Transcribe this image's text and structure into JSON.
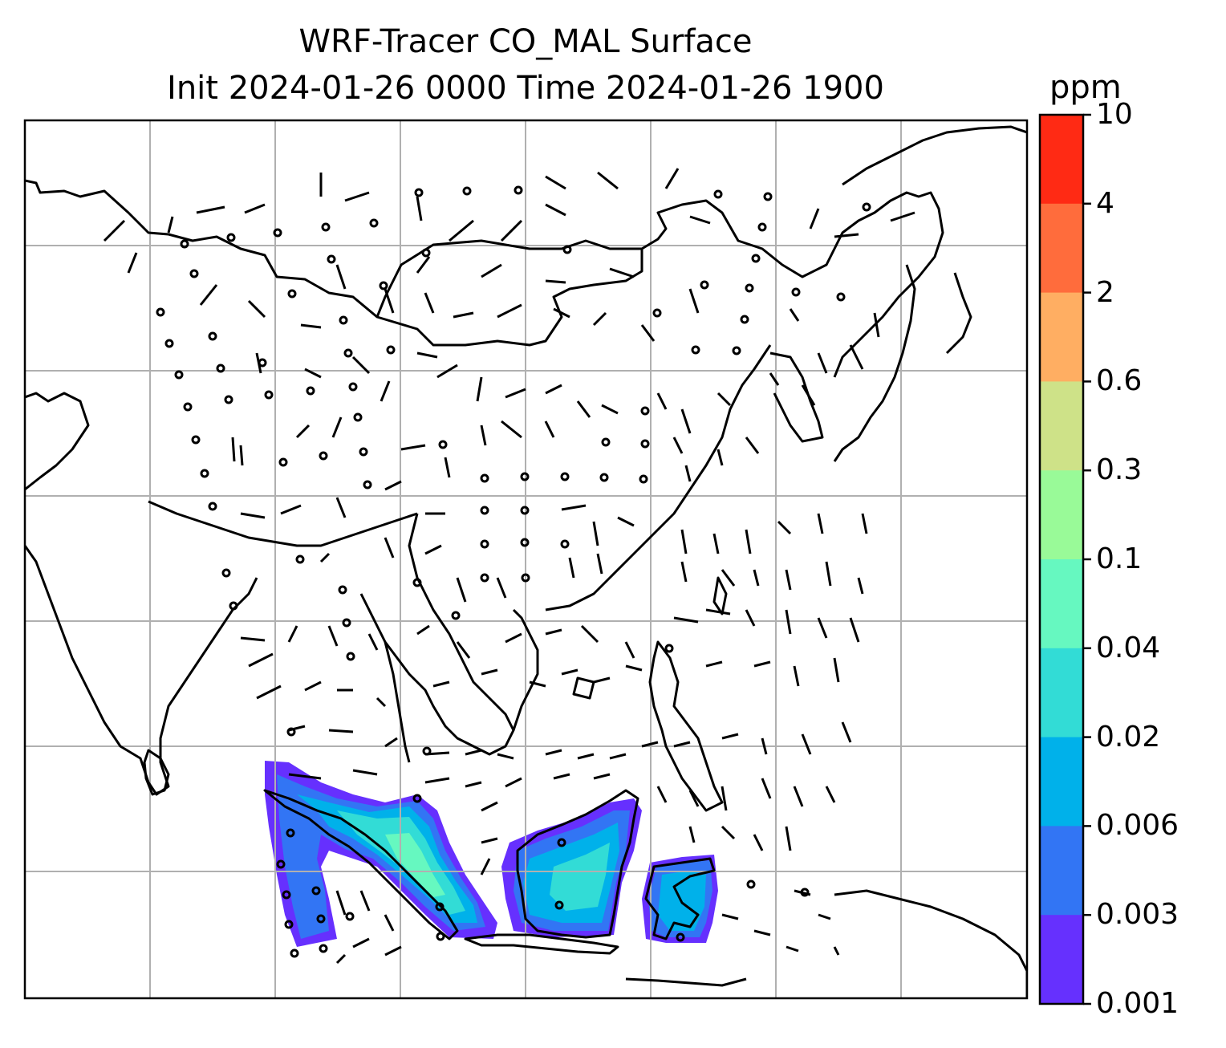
{
  "title": {
    "line1": "WRF-Tracer CO_MAL Surface",
    "line2": "Init 2024-01-26 0000 Time 2024-01-26 1900"
  },
  "colorbar": {
    "unit": "ppm",
    "ticks": [
      "10",
      "4",
      "2",
      "0.6",
      "0.3",
      "0.1",
      "0.04",
      "0.02",
      "0.006",
      "0.003",
      "0.001"
    ],
    "colors": [
      "#ff2a14",
      "#ff6c3c",
      "#ffae62",
      "#cee288",
      "#99fa98",
      "#66f8c0",
      "#32dcd6",
      "#00b1ea",
      "#3275f4",
      "#6630fe"
    ]
  },
  "map": {
    "gridline_color": "#b0b0b0",
    "coastline_color": "#000000",
    "plume_colors": {
      "lowest": "#6630fe",
      "low": "#3275f4",
      "mid": "#00b1ea",
      "high": "#32dcd6",
      "peak": "#66f8c0"
    }
  }
}
